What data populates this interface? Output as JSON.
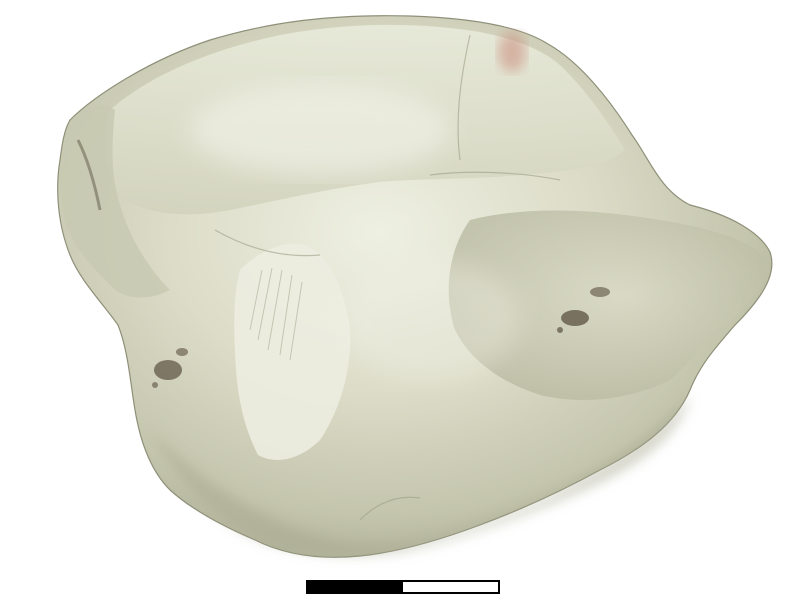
{
  "image": {
    "subject": "quartz-crystal-specimen",
    "background_color": "#ffffff",
    "specimen_colors": {
      "base": "#d8d9c3",
      "highlight": "#f1f1e6",
      "shadow": "#9ea08a",
      "stain": "#c98a7a",
      "inclusion": "#5a5040"
    }
  },
  "scale_bar": {
    "segments": [
      "black",
      "white"
    ],
    "colors": {
      "black": "#000000",
      "white": "#ffffff"
    }
  }
}
